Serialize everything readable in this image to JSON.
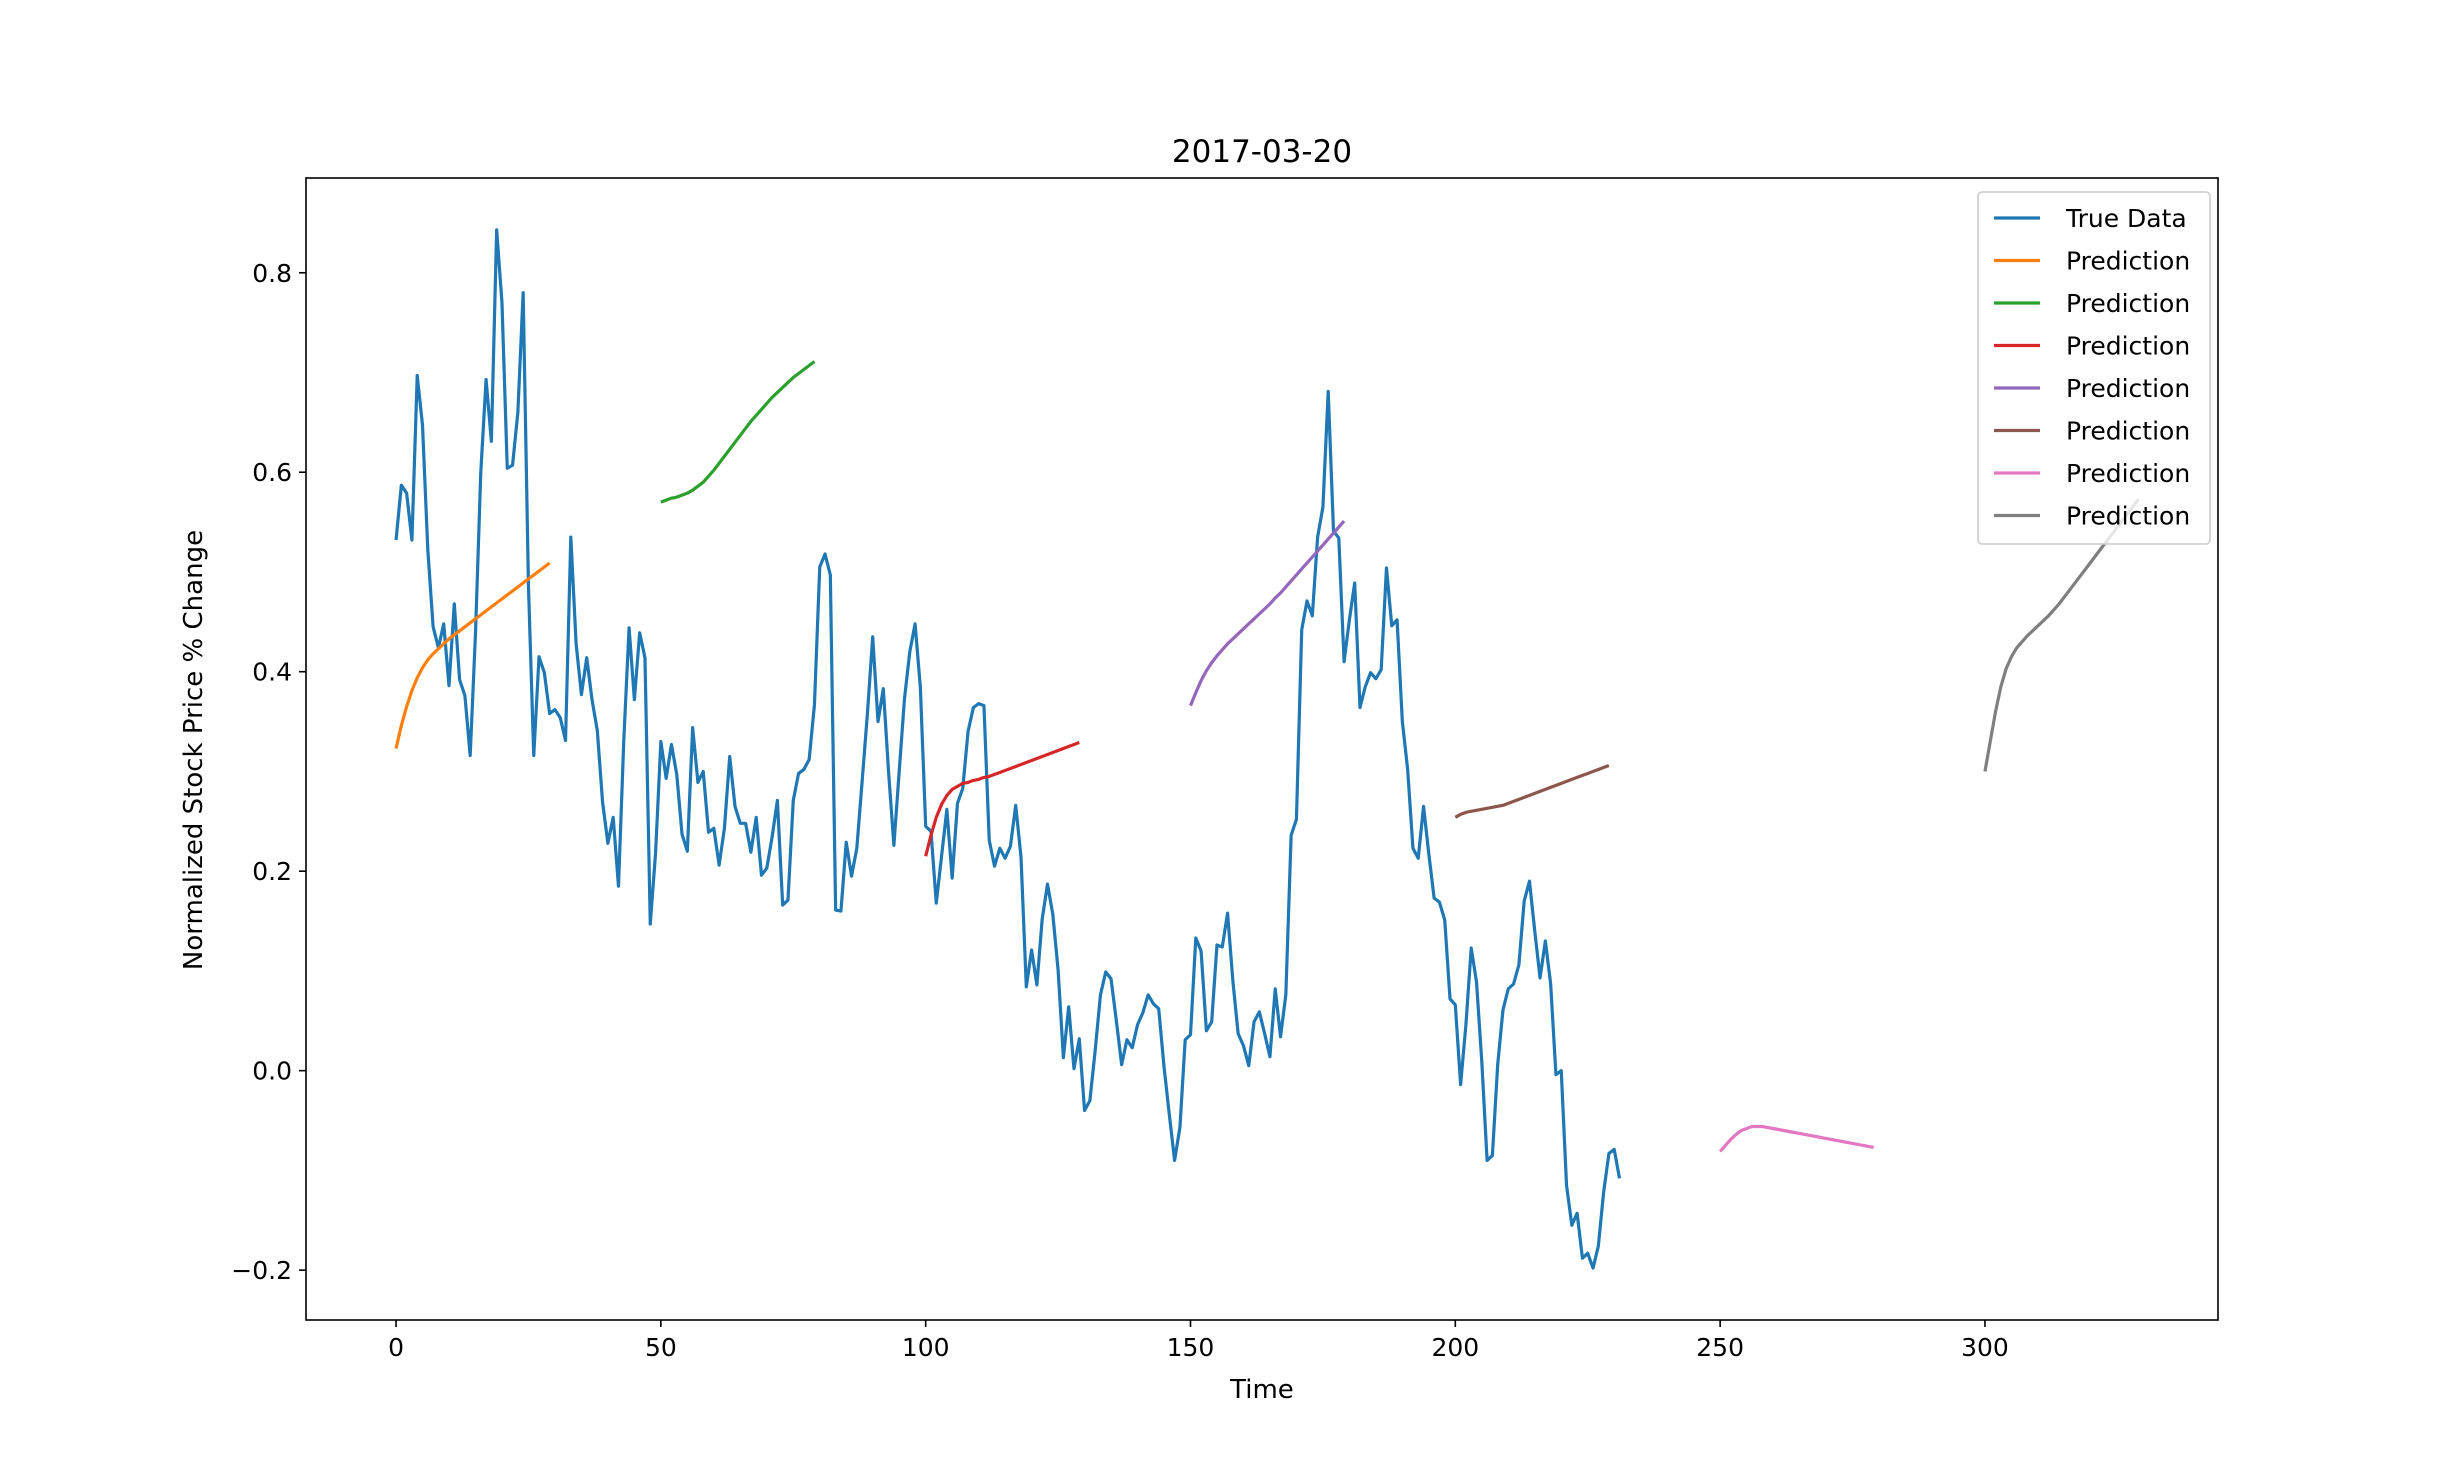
{
  "chart_data": {
    "type": "line",
    "title": "2017-03-20",
    "xlabel": "Time",
    "ylabel": "Normalized Stock Price % Change",
    "xlim": [
      -17,
      344
    ],
    "ylim": [
      -0.25,
      0.895
    ],
    "xticks": [
      0,
      50,
      100,
      150,
      200,
      250,
      300
    ],
    "yticks": [
      -0.2,
      0.0,
      0.2,
      0.4,
      0.6,
      0.8
    ],
    "ytick_labels": [
      "−0.2",
      "0.0",
      "0.2",
      "0.4",
      "0.6",
      "0.8"
    ],
    "grid": false,
    "legend_position": "top-right",
    "series": [
      {
        "name": "True Data",
        "color": "#1f77b4",
        "x_start": 0,
        "values": [
          0.532,
          0.587,
          0.579,
          0.532,
          0.697,
          0.647,
          0.522,
          0.445,
          0.424,
          0.448,
          0.386,
          0.468,
          0.392,
          0.376,
          0.316,
          0.438,
          0.6,
          0.693,
          0.631,
          0.843,
          0.77,
          0.604,
          0.607,
          0.66,
          0.78,
          0.486,
          0.316,
          0.415,
          0.399,
          0.358,
          0.362,
          0.354,
          0.331,
          0.535,
          0.428,
          0.377,
          0.414,
          0.372,
          0.341,
          0.269,
          0.228,
          0.254,
          0.185,
          0.331,
          0.444,
          0.372,
          0.439,
          0.414,
          0.147,
          0.218,
          0.33,
          0.293,
          0.327,
          0.297,
          0.237,
          0.22,
          0.344,
          0.289,
          0.3,
          0.239,
          0.243,
          0.206,
          0.243,
          0.315,
          0.265,
          0.248,
          0.248,
          0.219,
          0.254,
          0.196,
          0.203,
          0.234,
          0.271,
          0.166,
          0.171,
          0.271,
          0.298,
          0.302,
          0.312,
          0.367,
          0.505,
          0.518,
          0.497,
          0.161,
          0.16,
          0.229,
          0.195,
          0.223,
          0.29,
          0.358,
          0.435,
          0.35,
          0.383,
          0.299,
          0.226,
          0.3,
          0.373,
          0.42,
          0.448,
          0.384,
          0.245,
          0.24,
          0.168,
          0.215,
          0.262,
          0.193,
          0.268,
          0.283,
          0.34,
          0.364,
          0.368,
          0.366,
          0.231,
          0.205,
          0.223,
          0.213,
          0.225,
          0.266,
          0.214,
          0.084,
          0.121,
          0.086,
          0.152,
          0.187,
          0.157,
          0.101,
          0.013,
          0.064,
          0.002,
          0.032,
          -0.04,
          -0.03,
          0.02,
          0.076,
          0.099,
          0.092,
          0.05,
          0.006,
          0.031,
          0.023,
          0.046,
          0.058,
          0.076,
          0.067,
          0.062,
          0.004,
          -0.044,
          -0.09,
          -0.057,
          0.031,
          0.036,
          0.133,
          0.12,
          0.04,
          0.049,
          0.126,
          0.124,
          0.158,
          0.09,
          0.037,
          0.025,
          0.005,
          0.049,
          0.059,
          0.037,
          0.014,
          0.082,
          0.034,
          0.076,
          0.236,
          0.252,
          0.442,
          0.471,
          0.456,
          0.535,
          0.565,
          0.681,
          0.541,
          0.534,
          0.41,
          0.452,
          0.489,
          0.364,
          0.385,
          0.399,
          0.393,
          0.402,
          0.504,
          0.446,
          0.452,
          0.35,
          0.302,
          0.223,
          0.213,
          0.265,
          0.217,
          0.173,
          0.169,
          0.151,
          0.072,
          0.066,
          -0.014,
          0.046,
          0.123,
          0.089,
          0.009,
          -0.09,
          -0.085,
          0.006,
          0.061,
          0.082,
          0.087,
          0.106,
          0.17,
          0.19,
          0.14,
          0.093,
          0.13,
          0.087,
          -0.004,
          0.0,
          -0.115,
          -0.155,
          -0.143,
          -0.188,
          -0.183,
          -0.198,
          -0.176,
          -0.122,
          -0.083,
          -0.079,
          -0.108
        ]
      },
      {
        "name": "Prediction",
        "color": "#ff7f0e",
        "x_start": 0,
        "values": [
          0.323,
          0.346,
          0.365,
          0.381,
          0.394,
          0.404,
          0.412,
          0.418,
          0.423,
          0.428,
          0.433,
          0.437,
          0.441,
          0.445,
          0.449,
          0.453,
          0.457,
          0.461,
          0.465,
          0.469,
          0.473,
          0.477,
          0.481,
          0.485,
          0.489,
          0.493,
          0.497,
          0.501,
          0.505,
          0.509
        ]
      },
      {
        "name": "Prediction",
        "color": "#2ca02c",
        "x_start": 50,
        "values": [
          0.57,
          0.572,
          0.574,
          0.575,
          0.577,
          0.579,
          0.582,
          0.586,
          0.59,
          0.596,
          0.602,
          0.609,
          0.616,
          0.623,
          0.63,
          0.637,
          0.644,
          0.651,
          0.657,
          0.663,
          0.669,
          0.675,
          0.68,
          0.685,
          0.69,
          0.695,
          0.699,
          0.703,
          0.707,
          0.711
        ]
      },
      {
        "name": "Prediction",
        "color": "#d62728",
        "x_start": 100,
        "values": [
          0.215,
          0.236,
          0.254,
          0.267,
          0.276,
          0.282,
          0.285,
          0.288,
          0.289,
          0.291,
          0.292,
          0.294,
          0.295,
          0.297,
          0.299,
          0.301,
          0.303,
          0.305,
          0.307,
          0.309,
          0.311,
          0.313,
          0.315,
          0.317,
          0.319,
          0.321,
          0.323,
          0.325,
          0.327,
          0.329
        ]
      },
      {
        "name": "Prediction",
        "color": "#9467bd",
        "x_start": 150,
        "values": [
          0.366,
          0.379,
          0.391,
          0.401,
          0.409,
          0.416,
          0.422,
          0.428,
          0.433,
          0.438,
          0.443,
          0.448,
          0.453,
          0.458,
          0.463,
          0.468,
          0.474,
          0.479,
          0.485,
          0.491,
          0.497,
          0.503,
          0.509,
          0.515,
          0.521,
          0.527,
          0.533,
          0.539,
          0.545,
          0.551
        ]
      },
      {
        "name": "Prediction",
        "color": "#8c564b",
        "x_start": 200,
        "values": [
          0.254,
          0.257,
          0.259,
          0.26,
          0.261,
          0.262,
          0.263,
          0.264,
          0.265,
          0.266,
          0.268,
          0.27,
          0.272,
          0.274,
          0.276,
          0.278,
          0.28,
          0.282,
          0.284,
          0.286,
          0.288,
          0.29,
          0.292,
          0.294,
          0.296,
          0.298,
          0.3,
          0.302,
          0.304,
          0.306
        ]
      },
      {
        "name": "Prediction",
        "color": "#e377c2",
        "x_start": 250,
        "values": [
          -0.081,
          -0.075,
          -0.069,
          -0.064,
          -0.06,
          -0.058,
          -0.056,
          -0.056,
          -0.056,
          -0.057,
          -0.058,
          -0.059,
          -0.06,
          -0.061,
          -0.062,
          -0.063,
          -0.064,
          -0.065,
          -0.066,
          -0.067,
          -0.068,
          -0.069,
          -0.07,
          -0.071,
          -0.072,
          -0.073,
          -0.074,
          -0.075,
          -0.076,
          -0.077
        ]
      },
      {
        "name": "Prediction",
        "color": "#7f7f7f",
        "x_start": 300,
        "values": [
          0.3,
          0.33,
          0.36,
          0.385,
          0.403,
          0.415,
          0.424,
          0.43,
          0.436,
          0.441,
          0.446,
          0.451,
          0.456,
          0.462,
          0.468,
          0.475,
          0.482,
          0.489,
          0.496,
          0.503,
          0.51,
          0.517,
          0.524,
          0.531,
          0.538,
          0.545,
          0.552,
          0.559,
          0.566,
          0.573
        ]
      }
    ]
  }
}
